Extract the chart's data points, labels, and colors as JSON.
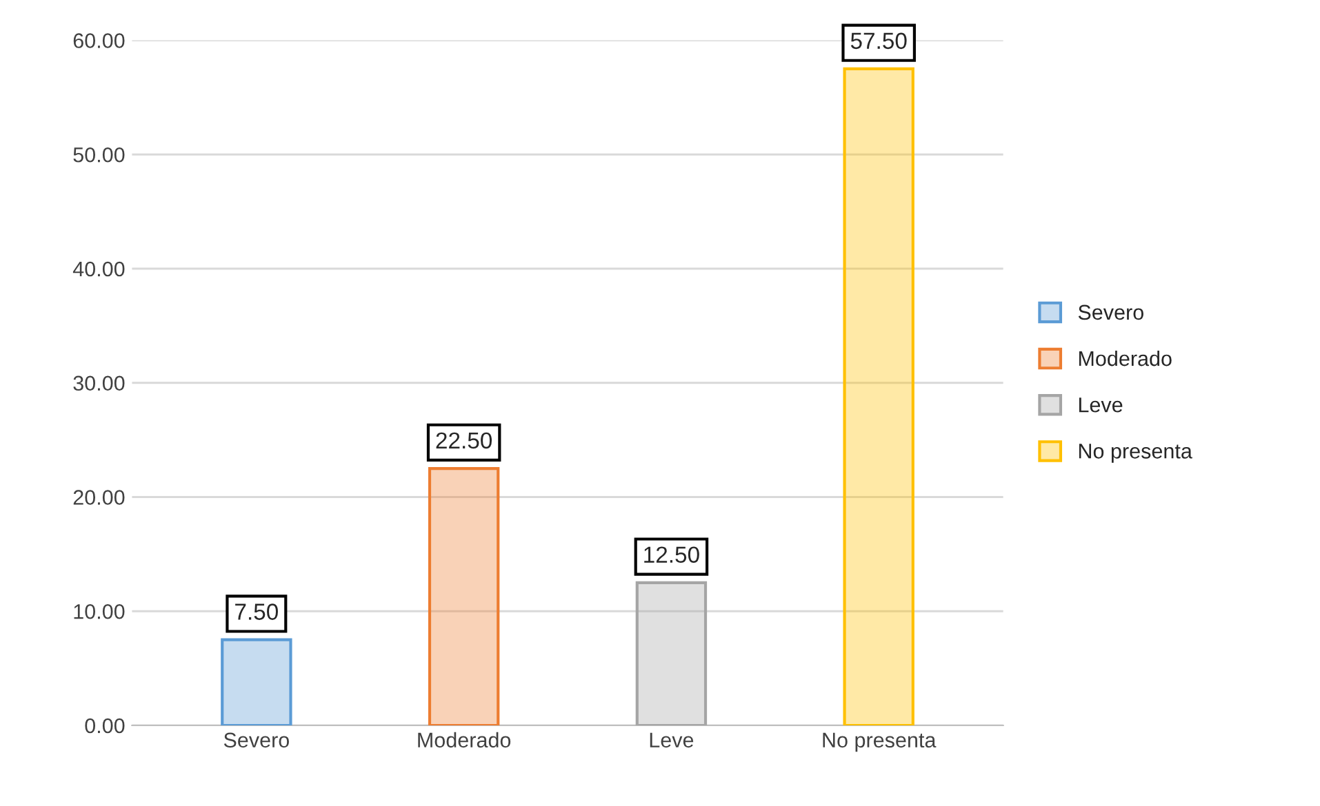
{
  "chart_data": {
    "type": "bar",
    "categories": [
      "Severo",
      "Moderado",
      "Leve",
      "No presenta"
    ],
    "series": [
      {
        "name": "Severo",
        "color": "#5b9bd5",
        "values": [
          7.5,
          null,
          null,
          null
        ],
        "value_labels": [
          "7.50",
          null,
          null,
          null
        ]
      },
      {
        "name": "Moderado",
        "color": "#ed7d31",
        "values": [
          null,
          22.5,
          null,
          null
        ],
        "value_labels": [
          null,
          "22.50",
          null,
          null
        ]
      },
      {
        "name": "Leve",
        "color": "#a5a5a5",
        "values": [
          null,
          null,
          12.5,
          null
        ],
        "value_labels": [
          null,
          null,
          "12.50",
          null
        ]
      },
      {
        "name": "No presenta",
        "color": "#ffc000",
        "values": [
          null,
          null,
          null,
          57.5
        ],
        "value_labels": [
          null,
          null,
          null,
          "57.50"
        ]
      }
    ],
    "ylim": [
      0,
      60
    ],
    "yticks": [
      {
        "value": 0,
        "label": "0.00"
      },
      {
        "value": 10,
        "label": "10.00"
      },
      {
        "value": 20,
        "label": "20.00"
      },
      {
        "value": 30,
        "label": "30.00"
      },
      {
        "value": 40,
        "label": "40.00"
      },
      {
        "value": 50,
        "label": "50.00"
      },
      {
        "value": 60,
        "label": "60.00"
      }
    ],
    "grid": "y",
    "legend": "right"
  }
}
